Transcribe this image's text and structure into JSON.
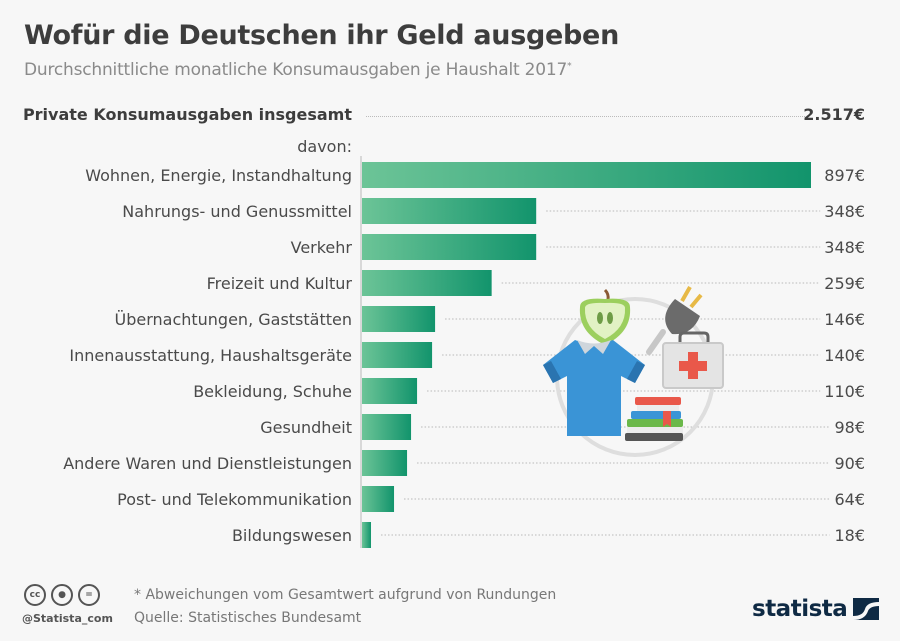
{
  "header": {
    "title": "Wofür die Deutschen ihr Geld ausgeben",
    "subtitle": "Durchschnittliche monatliche Konsumausgaben je Haushalt 2017",
    "subtitle_marker": "*"
  },
  "summary": {
    "total_label": "Private Konsumausgaben insgesamt",
    "total_value": "2.517€",
    "davon_label": "davon:"
  },
  "chart_data": {
    "type": "bar",
    "orientation": "horizontal",
    "title": "Wofür die Deutschen ihr Geld ausgeben",
    "subtitle": "Durchschnittliche monatliche Konsumausgaben je Haushalt 2017*",
    "unit": "€",
    "total": 2517,
    "categories": [
      "Wohnen, Energie, Instandhaltung",
      "Nahrungs- und Genussmittel",
      "Verkehr",
      "Freizeit und Kultur",
      "Übernachtungen, Gaststätten",
      "Innenausstattung, Haushaltsgeräte",
      "Bekleidung, Schuhe",
      "Gesundheit",
      "Andere Waren und Dienstleistungen",
      "Post- und Telekommunikation",
      "Bildungswesen"
    ],
    "values": [
      897,
      348,
      348,
      259,
      146,
      140,
      110,
      98,
      90,
      64,
      18
    ],
    "value_labels": [
      "897€",
      "348€",
      "348€",
      "259€",
      "146€",
      "140€",
      "110€",
      "98€",
      "90€",
      "64€",
      "18€"
    ],
    "xlim": [
      0,
      900
    ],
    "grid": false,
    "legend": "none",
    "colors": {
      "bar_start": "#6cc497",
      "bar_end": "#12946c"
    }
  },
  "illustration": {
    "icons": [
      "apple-icon",
      "plug-icon",
      "shirt-icon",
      "first-aid-kit-icon",
      "books-icon"
    ]
  },
  "footer": {
    "license_icons": [
      "cc",
      "by",
      "nd"
    ],
    "handle": "@Statista_com",
    "note": "* Abweichungen vom Gesamtwert aufgrund von Rundungen",
    "source": "Quelle: Statistisches Bundesamt",
    "brand": "statista"
  }
}
